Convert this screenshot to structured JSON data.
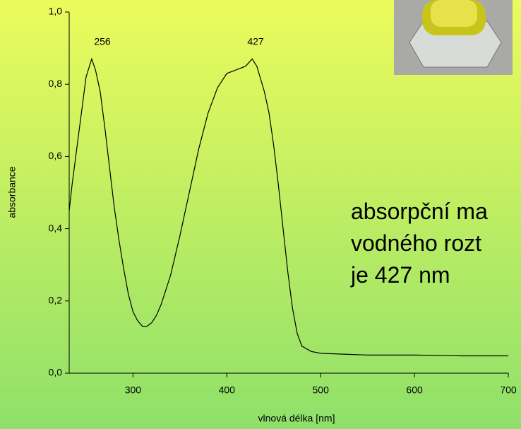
{
  "chart_data": {
    "type": "line",
    "x_label": "vlnová délka [nm]",
    "y_label": "absorbance",
    "annotations": [
      "256",
      "427",
      "absorpční ma",
      "vodného rozt",
      "je 427 nm"
    ],
    "xlim": [
      232,
      700
    ],
    "xticks": [
      300,
      400,
      500,
      600,
      700
    ],
    "ylim": [
      0,
      1
    ],
    "yticks": [
      {
        "value": 0,
        "label": "0,0"
      },
      {
        "value": 0.2,
        "label": "0,2"
      },
      {
        "value": 0.4,
        "label": "0,4"
      },
      {
        "value": 0.6,
        "label": "0,6"
      },
      {
        "value": 0.8,
        "label": "0,8"
      },
      {
        "value": 1,
        "label": "1,0"
      }
    ],
    "x": [
      232,
      235,
      240,
      245,
      250,
      256,
      260,
      265,
      270,
      275,
      280,
      285,
      290,
      295,
      300,
      305,
      310,
      315,
      320,
      325,
      330,
      340,
      350,
      360,
      370,
      380,
      390,
      400,
      410,
      420,
      427,
      432,
      440,
      445,
      450,
      455,
      460,
      465,
      470,
      475,
      480,
      490,
      500,
      550,
      600,
      650,
      700
    ],
    "series": [
      {
        "color": "#000000",
        "values": [
          0.45,
          0.52,
          0.62,
          0.72,
          0.82,
          0.87,
          0.84,
          0.78,
          0.68,
          0.57,
          0.46,
          0.37,
          0.29,
          0.22,
          0.17,
          0.145,
          0.13,
          0.13,
          0.14,
          0.16,
          0.19,
          0.27,
          0.38,
          0.5,
          0.62,
          0.72,
          0.79,
          0.83,
          0.84,
          0.85,
          0.87,
          0.85,
          0.78,
          0.72,
          0.63,
          0.52,
          0.4,
          0.28,
          0.18,
          0.11,
          0.075,
          0.06,
          0.055,
          0.05,
          0.05,
          0.048,
          0.048
        ]
      }
    ]
  }
}
